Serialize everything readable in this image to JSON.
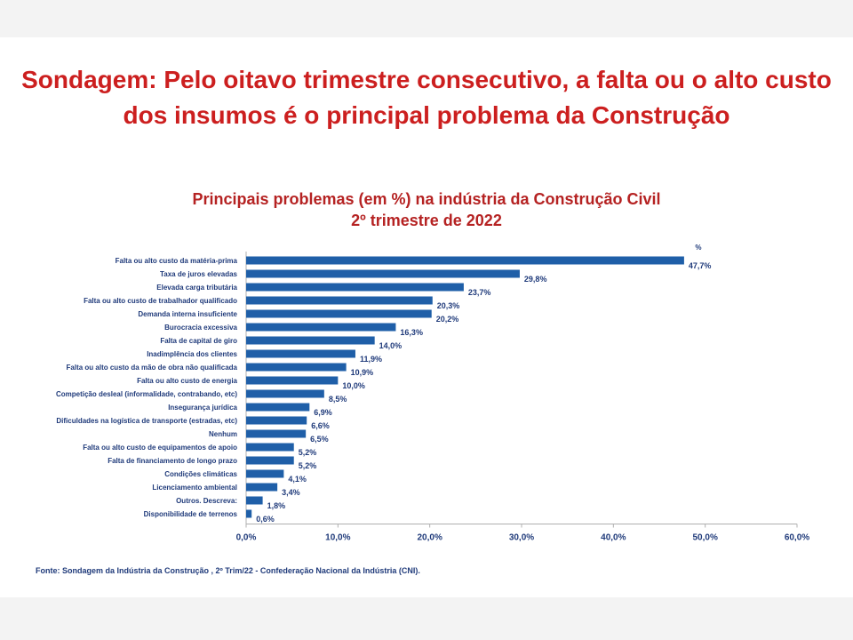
{
  "headline": {
    "line1": "Sondagem: Pelo oitavo trimestre consecutivo, a falta ou o alto custo",
    "line2": "dos insumos é o principal problema da Construção"
  },
  "chart_data": {
    "type": "bar",
    "orientation": "horizontal",
    "title": "Principais problemas (em %) na indústria da Construção Civil",
    "subtitle": "2º trimestre de 2022",
    "unit_label": "%",
    "categories": [
      "Falta ou alto custo da matéria-prima",
      "Taxa de juros elevadas",
      "Elevada carga tributária",
      "Falta ou alto custo de trabalhador qualificado",
      "Demanda interna insuficiente",
      "Burocracia excessiva",
      "Falta de capital de giro",
      "Inadimplência dos clientes",
      "Falta ou alto custo da mão de obra não qualificada",
      "Falta ou alto custo de energia",
      "Competição desleal (informalidade, contrabando, etc)",
      "Insegurança jurídica",
      "Dificuldades na logística de transporte (estradas, etc)",
      "Nenhum",
      "Falta ou alto custo de equipamentos de apoio",
      "Falta de financiamento de longo prazo",
      "Condições climáticas",
      "Licenciamento ambiental",
      "Outros. Descreva:",
      "Disponibilidade de terrenos"
    ],
    "values": [
      47.7,
      29.8,
      23.7,
      20.3,
      20.2,
      16.3,
      14.0,
      11.9,
      10.9,
      10.0,
      8.5,
      6.9,
      6.6,
      6.5,
      5.2,
      5.2,
      4.1,
      3.4,
      1.8,
      0.6
    ],
    "value_labels": [
      "47,7%",
      "29,8%",
      "23,7%",
      "20,3%",
      "20,2%",
      "16,3%",
      "14,0%",
      "11,9%",
      "10,9%",
      "10,0%",
      "8,5%",
      "6,9%",
      "6,6%",
      "6,5%",
      "5,2%",
      "5,2%",
      "4,1%",
      "3,4%",
      "1,8%",
      "0,6%"
    ],
    "xlim": [
      0,
      60
    ],
    "xticks": [
      0,
      10,
      20,
      30,
      40,
      50,
      60
    ],
    "xtick_labels": [
      "0,0%",
      "10,0%",
      "20,0%",
      "30,0%",
      "40,0%",
      "50,0%",
      "60,0%"
    ],
    "grid": false,
    "legend": "none",
    "bar_color": "#1f5fa8"
  },
  "source": "Fonte: Sondagem da Indústria da Construção , 2º Trim/22 - Confederação Nacional da Indústria (CNI)."
}
